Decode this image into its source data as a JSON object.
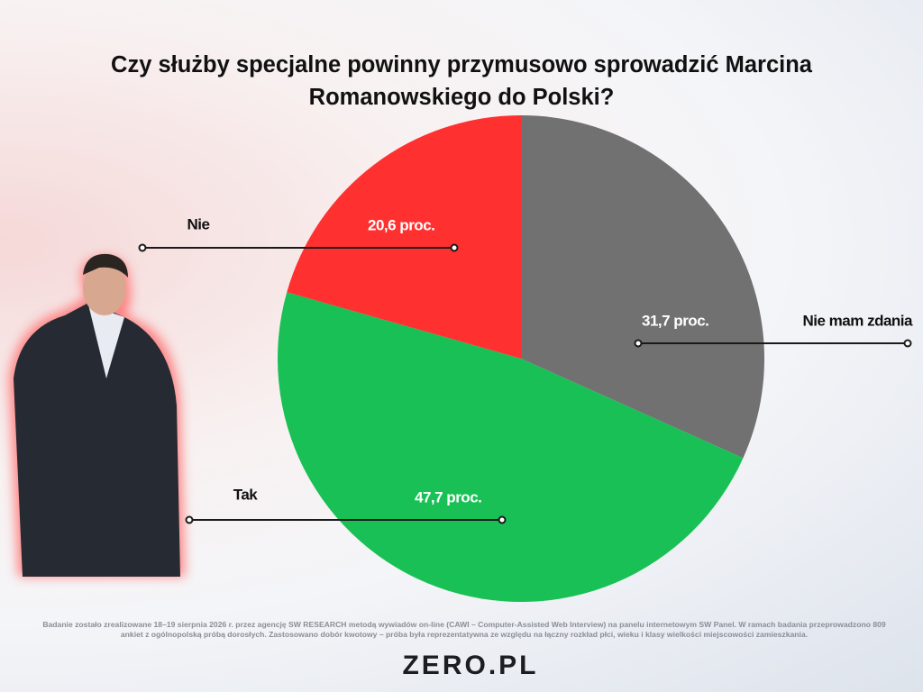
{
  "chart_data": {
    "type": "pie",
    "title": "Czy służby specjalne powinny przymusowo sprowadzić Marcina Romanowskiego do Polski?",
    "categories": [
      "Nie mam zdania",
      "Tak",
      "Nie"
    ],
    "values": [
      31.7,
      47.7,
      20.6
    ],
    "value_labels": [
      "31,7 proc.",
      "47,7 proc.",
      "20,6 proc."
    ],
    "colors": [
      "#717171",
      "#19c055",
      "#fe3030"
    ],
    "footnote": "Badanie zostało zrealizowane 18–19 sierpnia 2026 r. przez agencję SW RESEARCH metodą wywiadów on-line (CAWI – Computer-Assisted Web Interview) na panelu internetowym SW Panel. W ramach badania przeprowadzono 809 ankiet z ogólnopolską próbą dorosłych. Zastosowano dobór kwotowy – próba była reprezentatywna ze względu na łączny rozkład płci, wieku i klasy wielkości miejscowości zamieszkania.",
    "logo": "ZERO.PL"
  }
}
